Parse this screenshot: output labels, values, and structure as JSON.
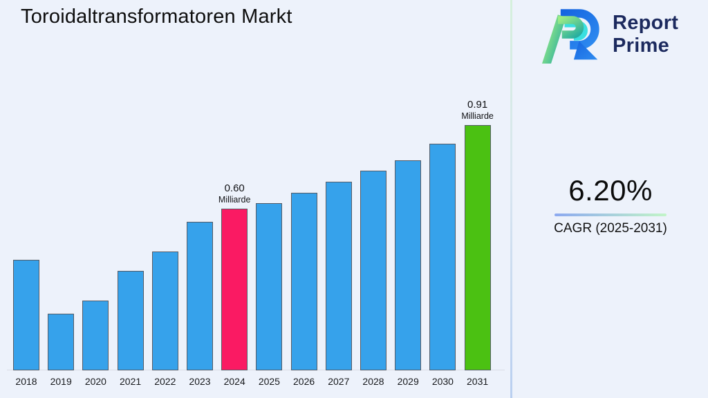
{
  "page": {
    "background": "#EDF2FB"
  },
  "header": {
    "title": "Toroidaltransformatoren Markt"
  },
  "logo": {
    "name": "Report Prime",
    "line1": "Report",
    "line2": "Prime",
    "text_color": "#1C2A5E",
    "mark_colors": {
      "blue": "#1F6BE0",
      "cyan": "#3ADFE0",
      "green_light": "#9CEC84",
      "teal": "#28AD9F"
    }
  },
  "cagr_panel": {
    "value": "6.20%",
    "label": "CAGR (2025-2031)",
    "underline_gradient": [
      "#8CA9F0",
      "#C2F5C8"
    ]
  },
  "chart_data": {
    "type": "bar",
    "title": "Toroidaltransformatoren Markt",
    "unit": "Milliarde",
    "xlabel": "",
    "ylabel": "",
    "ylim": [
      0,
      1.0
    ],
    "grid": false,
    "legend": false,
    "categories": [
      "2018",
      "2019",
      "2020",
      "2021",
      "2022",
      "2023",
      "2024",
      "2025",
      "2026",
      "2027",
      "2028",
      "2029",
      "2030",
      "2031"
    ],
    "values": [
      0.41,
      0.21,
      0.26,
      0.37,
      0.44,
      0.55,
      0.6,
      0.62,
      0.66,
      0.7,
      0.74,
      0.78,
      0.84,
      0.91
    ],
    "bar_colors": [
      "#36A2EB",
      "#36A2EB",
      "#36A2EB",
      "#36A2EB",
      "#36A2EB",
      "#36A2EB",
      "#FA1A63",
      "#36A2EB",
      "#36A2EB",
      "#36A2EB",
      "#36A2EB",
      "#36A2EB",
      "#36A2EB",
      "#4BC112"
    ],
    "bar_border_color": "#555B66",
    "annotations": [
      {
        "index": 6,
        "category": "2024",
        "value_label": "0.60",
        "unit_label": "Milliarde"
      },
      {
        "index": 13,
        "category": "2031",
        "value_label": "0.91",
        "unit_label": "Milliarde"
      }
    ]
  }
}
